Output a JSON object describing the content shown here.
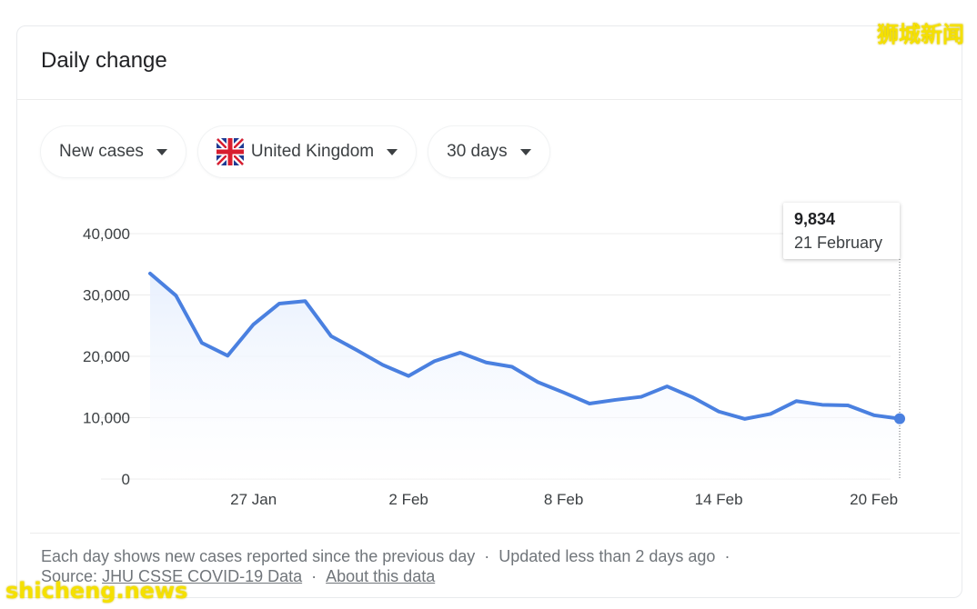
{
  "card": {
    "title": "Daily change"
  },
  "filters": {
    "metric": "New cases",
    "country": "United Kingdom",
    "range": "30 days"
  },
  "tooltip": {
    "value": "9,834",
    "date": "21 February"
  },
  "footer": {
    "description": "Each day shows new cases reported since the previous day",
    "updated": "Updated less than 2 days ago",
    "source_label": "Source:",
    "source_link": "JHU CSSE COVID-19 Data",
    "about_link": "About this data",
    "separator": "·"
  },
  "watermarks": {
    "top": "狮城新闻",
    "bottom": "shicheng.news"
  },
  "colors": {
    "line": "#4a80e0",
    "area": "#e8f0fe",
    "grid": "#ececec",
    "axis_text": "#3c4043"
  },
  "chart_data": {
    "type": "area",
    "title": "",
    "xlabel": "",
    "ylabel": "",
    "ylim": [
      0,
      40000
    ],
    "yticks": [
      0,
      10000,
      20000,
      30000,
      40000
    ],
    "ytick_labels": [
      "0",
      "10,000",
      "20,000",
      "30,000",
      "40,000"
    ],
    "xtick_labels": [
      "27 Jan",
      "2 Feb",
      "8 Feb",
      "14 Feb",
      "20 Feb"
    ],
    "xtick_index": [
      4,
      10,
      16,
      22,
      28
    ],
    "grid": true,
    "legend": "none",
    "x": [
      "23 Jan",
      "24 Jan",
      "25 Jan",
      "26 Jan",
      "27 Jan",
      "28 Jan",
      "29 Jan",
      "30 Jan",
      "31 Jan",
      "1 Feb",
      "2 Feb",
      "3 Feb",
      "4 Feb",
      "5 Feb",
      "6 Feb",
      "7 Feb",
      "8 Feb",
      "9 Feb",
      "10 Feb",
      "11 Feb",
      "12 Feb",
      "13 Feb",
      "14 Feb",
      "15 Feb",
      "16 Feb",
      "17 Feb",
      "18 Feb",
      "19 Feb",
      "20 Feb",
      "21 Feb"
    ],
    "series": [
      {
        "values": [
          33500,
          29900,
          22200,
          20100,
          25200,
          28600,
          29000,
          23300,
          21000,
          18600,
          16800,
          19200,
          20600,
          19000,
          18300,
          15800,
          14100,
          12300,
          12900,
          13400,
          15100,
          13300,
          11000,
          9800,
          10600,
          12700,
          12100,
          12000,
          10400,
          9834
        ]
      }
    ],
    "highlight": {
      "index": 29,
      "value": 9834,
      "label": "21 February"
    }
  }
}
